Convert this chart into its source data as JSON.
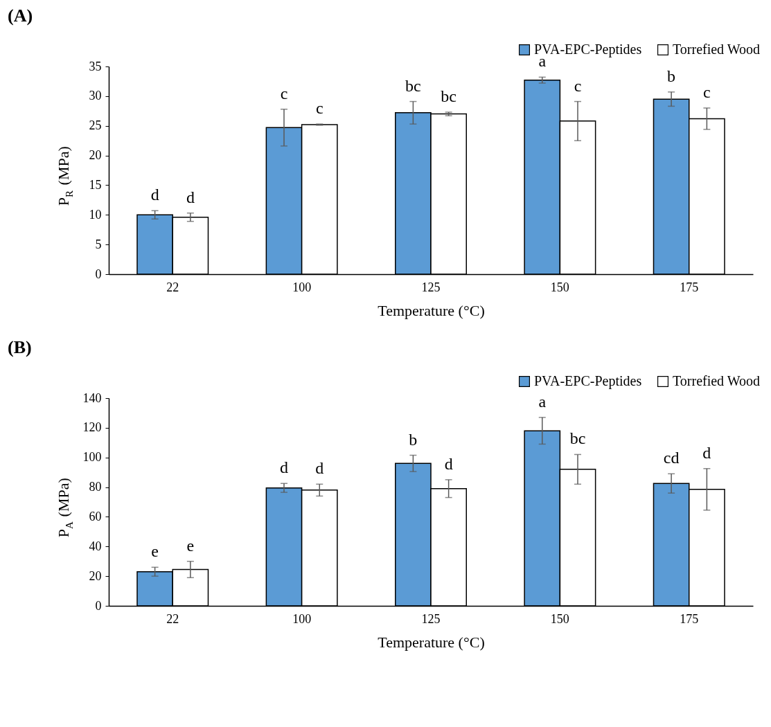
{
  "chart_data": [
    {
      "type": "bar",
      "title": "(A)",
      "xlabel": "Temperature (°C)",
      "ylabel": "P$_{R}$ (MPa)",
      "categories": [
        "22",
        "100",
        "125",
        "150",
        "175"
      ],
      "ylim": [
        0,
        35
      ],
      "yticks": [
        0,
        5,
        10,
        15,
        20,
        25,
        30,
        35
      ],
      "grid": false,
      "legend": "top right",
      "series": [
        {
          "name": "PVA-EPC-Peptides",
          "color": "#5b9bd5",
          "values": [
            10.0,
            24.7,
            27.2,
            32.7,
            29.5
          ],
          "errors": [
            0.7,
            3.1,
            1.9,
            0.5,
            1.2
          ],
          "value_labels": [
            "d",
            "c",
            "bc",
            "a",
            "b"
          ]
        },
        {
          "name": "Torrefied Wood",
          "color": "#ffffff",
          "values": [
            9.6,
            25.2,
            27.0,
            25.8,
            26.2
          ],
          "errors": [
            0.7,
            0.1,
            0.3,
            3.3,
            1.8
          ],
          "value_labels": [
            "d",
            "c",
            "bc",
            "c",
            "c"
          ]
        }
      ]
    },
    {
      "type": "bar",
      "title": "(B)",
      "xlabel": "Temperature (°C)",
      "ylabel": "P$_{A}$ (MPa)",
      "categories": [
        "22",
        "100",
        "125",
        "150",
        "175"
      ],
      "ylim": [
        0,
        140
      ],
      "yticks": [
        0,
        20,
        40,
        60,
        80,
        100,
        120,
        140
      ],
      "grid": false,
      "legend": "top right",
      "series": [
        {
          "name": "PVA-EPC-Peptides",
          "color": "#5b9bd5",
          "values": [
            23,
            79.5,
            96,
            118,
            82.5
          ],
          "errors": [
            3,
            3,
            5.5,
            9,
            6.5
          ],
          "value_labels": [
            "e",
            "d",
            "b",
            "a",
            "cd"
          ]
        },
        {
          "name": "Torrefied Wood",
          "color": "#ffffff",
          "values": [
            24.5,
            78,
            79,
            92,
            78.5
          ],
          "errors": [
            5.5,
            4,
            6,
            10,
            14
          ],
          "value_labels": [
            "e",
            "d",
            "d",
            "bc",
            "d"
          ]
        }
      ]
    }
  ]
}
